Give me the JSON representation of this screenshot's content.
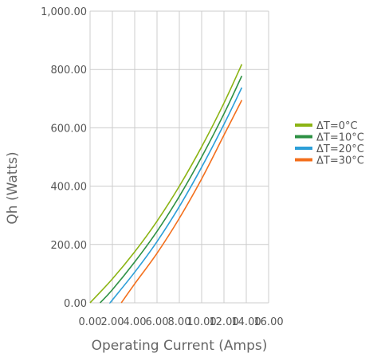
{
  "chart_data": {
    "type": "line",
    "title": "",
    "xlabel": "Operating Current (Amps)",
    "ylabel": "Qh (Watts)",
    "xlim": [
      0,
      16
    ],
    "ylim": [
      0,
      1000
    ],
    "x_tick_labels": [
      "0.00",
      "2.00",
      "4.00",
      "6.00",
      "8.00",
      "10.00",
      "12.00",
      "14.00",
      "16.00"
    ],
    "y_tick_labels": [
      "0.00",
      "200.00",
      "400.00",
      "600.00",
      "800.00",
      "1,000.00"
    ],
    "grid": true,
    "legend_position": "right",
    "series": [
      {
        "name": "ΔT=0°C",
        "color": "#8cb414",
        "x": [
          0,
          2,
          4,
          6,
          8,
          10,
          12,
          13.6
        ],
        "y": [
          0,
          82,
          175,
          280,
          400,
          535,
          685,
          818
        ]
      },
      {
        "name": "ΔT=10°C",
        "color": "#2e9144",
        "x": [
          0.9,
          2,
          4,
          6,
          8,
          10,
          12,
          13.6
        ],
        "y": [
          0,
          45,
          140,
          245,
          365,
          500,
          648,
          778
        ]
      },
      {
        "name": "ΔT=20°C",
        "color": "#2c9fd8",
        "x": [
          1.8,
          2,
          4,
          6,
          8,
          10,
          12,
          13.6
        ],
        "y": [
          0,
          10,
          105,
          210,
          330,
          465,
          612,
          738
        ]
      },
      {
        "name": "ΔT=30°C",
        "color": "#f36f1c",
        "x": [
          2.8,
          4,
          6,
          8,
          10,
          12,
          13.6
        ],
        "y": [
          0,
          65,
          170,
          290,
          425,
          575,
          695
        ]
      }
    ]
  }
}
